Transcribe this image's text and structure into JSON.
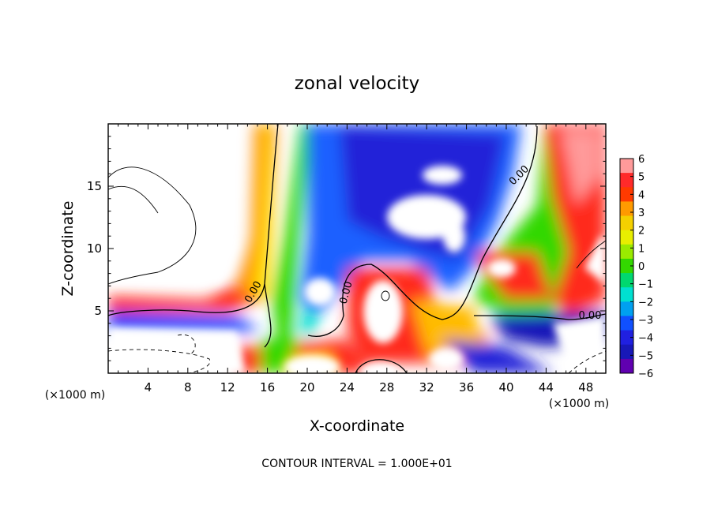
{
  "chart_data": {
    "type": "heatmap",
    "title": "zonal velocity",
    "xlabel": "X-coordinate",
    "ylabel": "Z-coordinate",
    "x_unit": "(×1000 m)",
    "xlim": [
      0,
      50
    ],
    "ylim": [
      0,
      20
    ],
    "x_ticks": [
      4,
      8,
      12,
      16,
      20,
      24,
      28,
      32,
      36,
      40,
      44,
      48
    ],
    "y_ticks": [
      5,
      10,
      15
    ],
    "colorbar": {
      "ticks": [
        6,
        5,
        4,
        3,
        2,
        1,
        0,
        -1,
        -2,
        -3,
        -4,
        -5,
        -6
      ],
      "colors": [
        "#ff9a9a",
        "#ff2a2a",
        "#ff3a00",
        "#ff9a00",
        "#f5d000",
        "#e8ee00",
        "#9aea00",
        "#33d800",
        "#00d870",
        "#00e0d0",
        "#00a0f0",
        "#1050ff",
        "#2020e0",
        "#1818b8",
        "#6000b0"
      ]
    },
    "contour_labels": [
      "0.00",
      "0.00",
      "0.00",
      "0.00"
    ],
    "footer": "CONTOUR INTERVAL = 1.000E+01"
  }
}
